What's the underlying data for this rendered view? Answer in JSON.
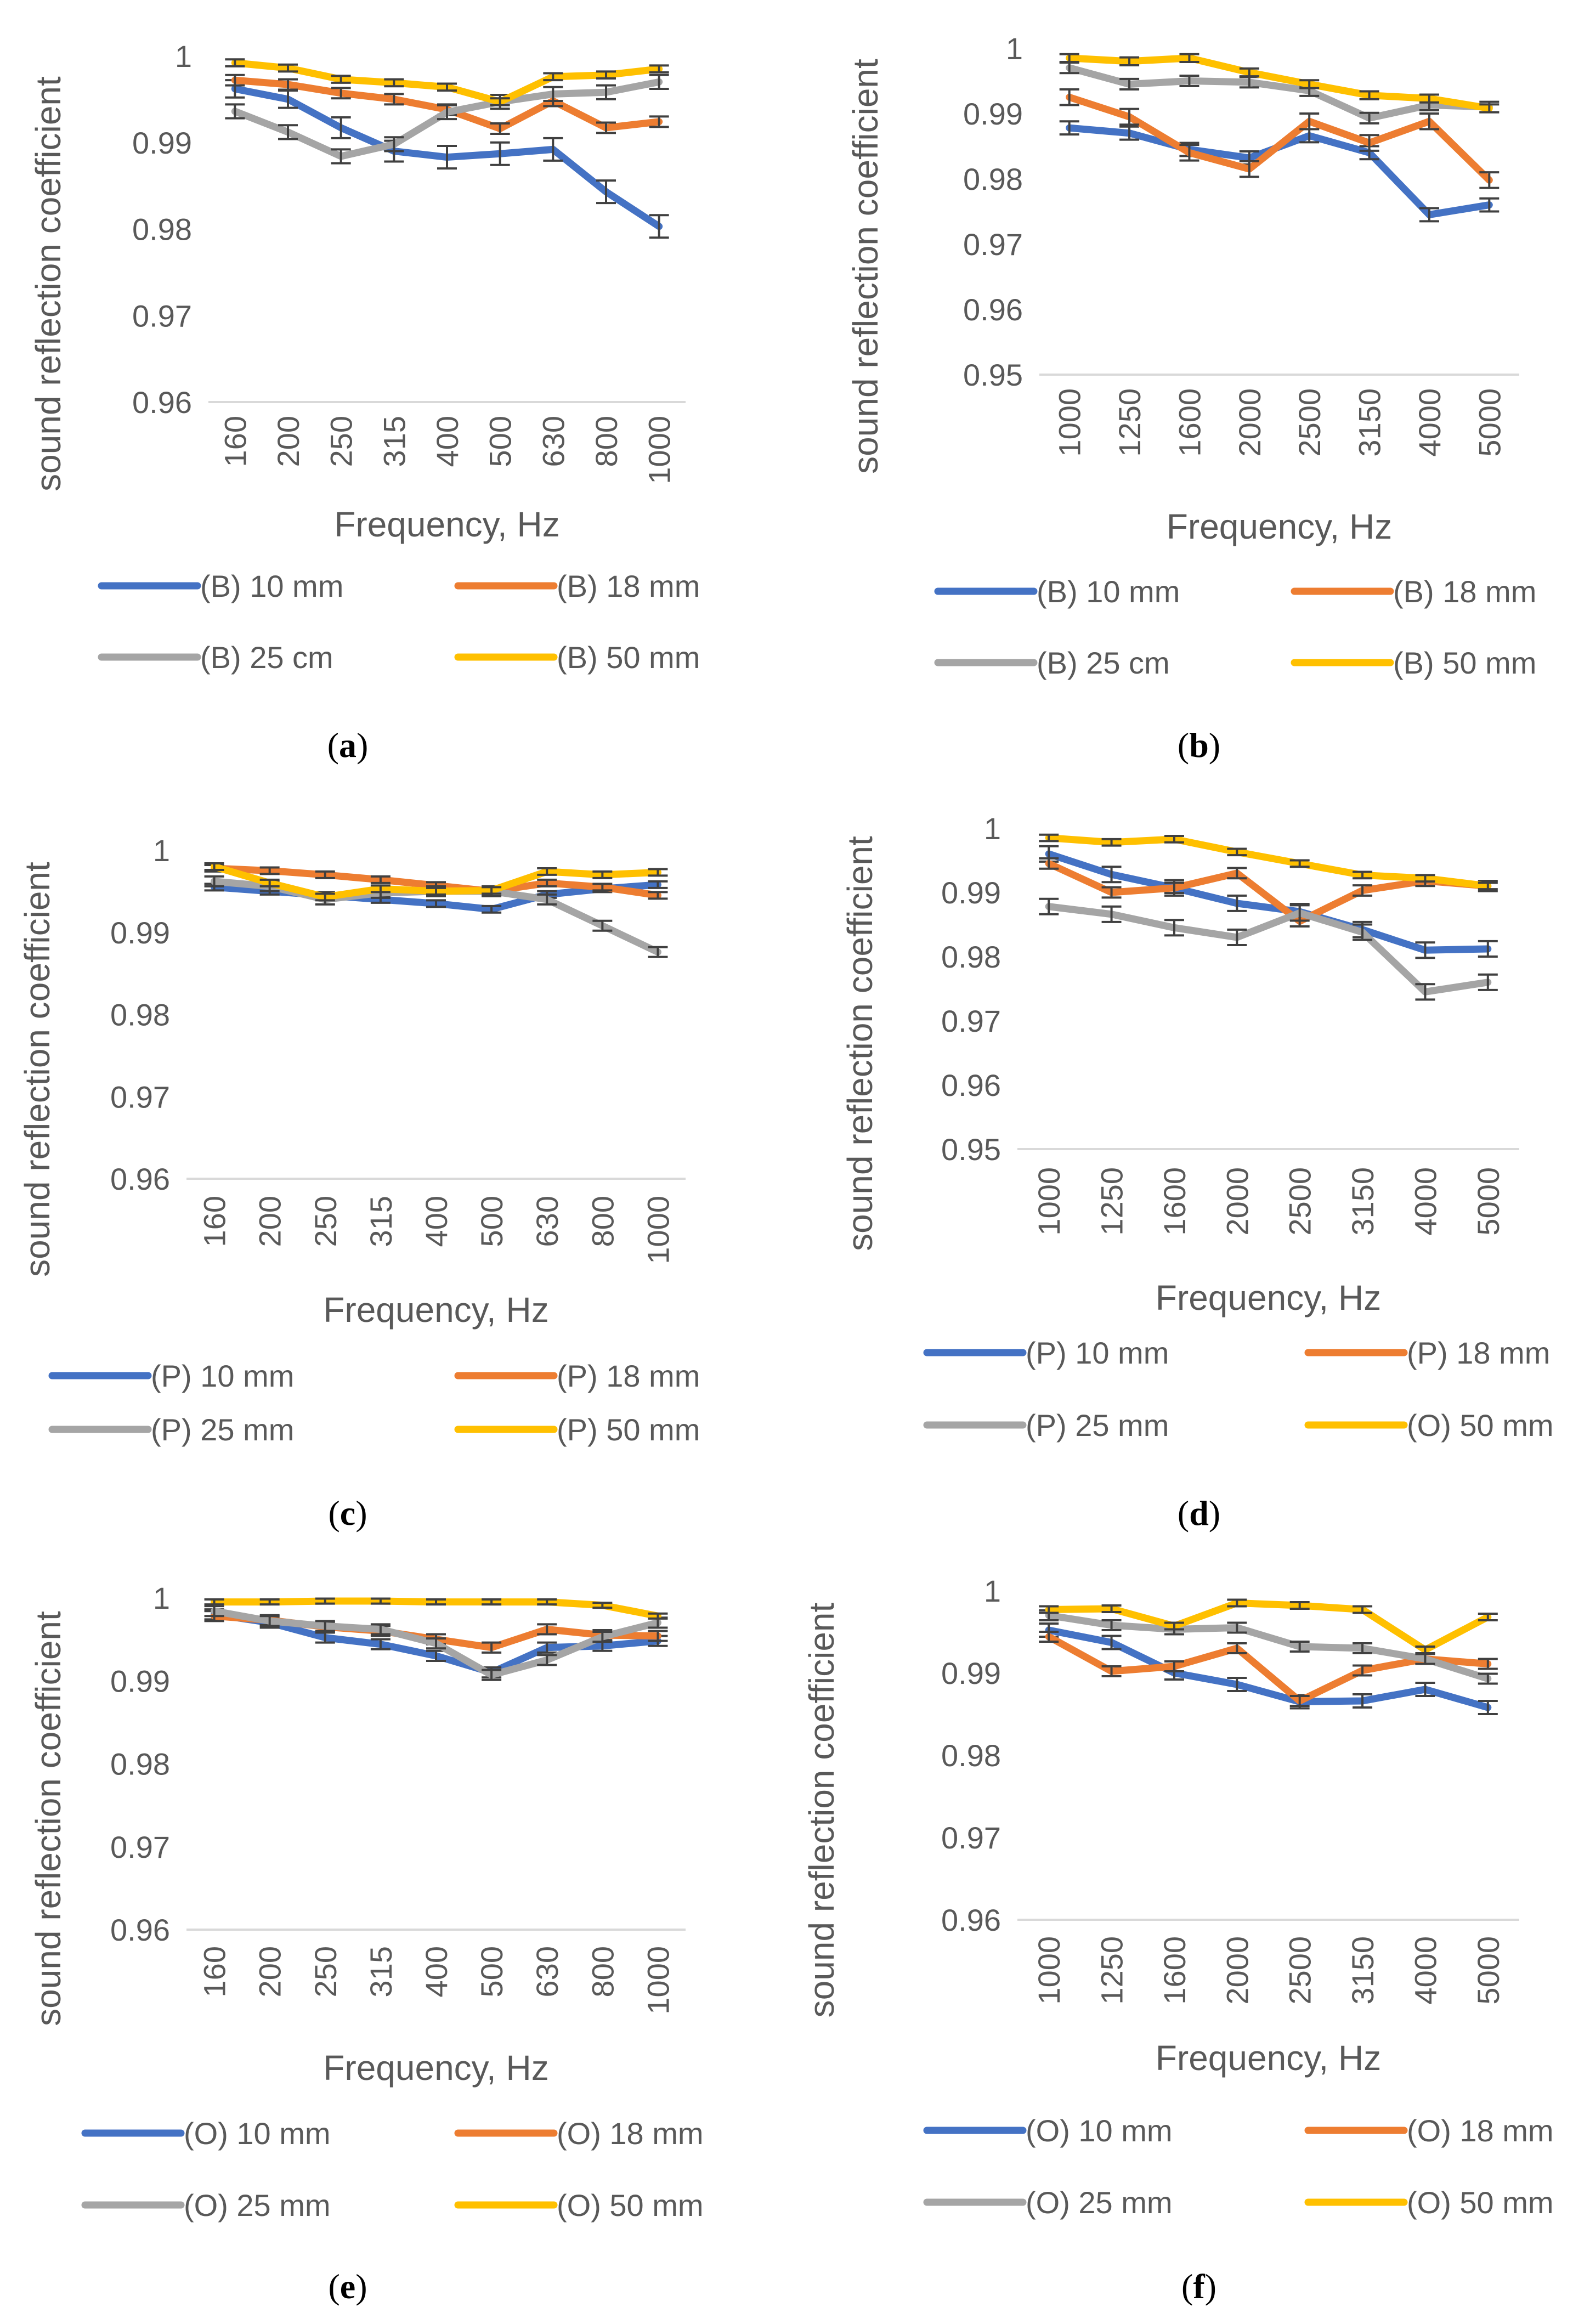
{
  "figure": {
    "y_axis_title": "sound reflection coefficient",
    "x_axis_title": "Frequency, Hz"
  },
  "colors": {
    "series": [
      "#4472C4",
      "#ED7D31",
      "#A5A5A5",
      "#FFC000"
    ],
    "axis": "#D9D9D9",
    "text": "#595959",
    "error_bar": "#404040"
  },
  "chart_data": [
    {
      "panel": "a",
      "caption_letter": "a",
      "type": "line",
      "title": "",
      "xlabel": "Frequency, Hz",
      "ylabel": "sound reflection coefficient",
      "categories": [
        "160",
        "200",
        "250",
        "315",
        "400",
        "500",
        "630",
        "800",
        "1000"
      ],
      "ylim": [
        0.96,
        1.0
      ],
      "yticks": [
        "1",
        "0.99",
        "0.98",
        "0.97",
        "0.96"
      ],
      "grid": false,
      "legend_position": "bottom",
      "series": [
        {
          "name": "(B) 10 mm",
          "values": [
            0.9962,
            0.995,
            0.9917,
            0.989,
            0.9883,
            0.9887,
            0.9892,
            0.9843,
            0.9803
          ],
          "errors": [
            0.001,
            0.001,
            0.0012,
            0.0012,
            0.0013,
            0.0013,
            0.0013,
            0.0013,
            0.0013
          ]
        },
        {
          "name": "(B) 18 mm",
          "values": [
            0.9972,
            0.9967,
            0.9957,
            0.995,
            0.9938,
            0.9916,
            0.9948,
            0.9917,
            0.9924
          ],
          "errors": [
            0.0006,
            0.0006,
            0.0006,
            0.0006,
            0.0006,
            0.0006,
            0.0006,
            0.0006,
            0.0006
          ]
        },
        {
          "name": "(B) 25 cm",
          "values": [
            0.9936,
            0.9912,
            0.9884,
            0.9898,
            0.9935,
            0.9947,
            0.9956,
            0.9958,
            0.997
          ],
          "errors": [
            0.0008,
            0.0008,
            0.0008,
            0.0008,
            0.0008,
            0.0008,
            0.0008,
            0.0008,
            0.0008
          ]
        },
        {
          "name": "(B) 50 mm",
          "values": [
            0.9992,
            0.9986,
            0.9973,
            0.9969,
            0.9964,
            0.9947,
            0.9976,
            0.9978,
            0.9985
          ],
          "errors": [
            0.0004,
            0.0004,
            0.0004,
            0.0004,
            0.0004,
            0.0004,
            0.0004,
            0.0004,
            0.0004
          ]
        }
      ]
    },
    {
      "panel": "b",
      "caption_letter": "b",
      "type": "line",
      "title": "",
      "xlabel": "Frequency, Hz",
      "ylabel": "sound reflection coefficient",
      "categories": [
        "1000",
        "1250",
        "1600",
        "2000",
        "2500",
        "3150",
        "4000",
        "5000"
      ],
      "ylim": [
        0.95,
        1.0
      ],
      "yticks": [
        "1",
        "0.99",
        "0.98",
        "0.97",
        "0.96",
        "0.95"
      ],
      "grid": false,
      "legend_position": "bottom",
      "series": [
        {
          "name": "(B) 10 mm",
          "values": [
            0.9878,
            0.987,
            0.9845,
            0.9832,
            0.9866,
            0.984,
            0.9745,
            0.976
          ],
          "errors": [
            0.001,
            0.001,
            0.001,
            0.001,
            0.001,
            0.001,
            0.001,
            0.001
          ]
        },
        {
          "name": "(B) 18 mm",
          "values": [
            0.9925,
            0.9895,
            0.984,
            0.9815,
            0.9888,
            0.9855,
            0.9888,
            0.9798
          ],
          "errors": [
            0.0012,
            0.0012,
            0.0012,
            0.0012,
            0.0012,
            0.0012,
            0.0012,
            0.0012
          ]
        },
        {
          "name": "(B) 25 cm",
          "values": [
            0.997,
            0.9945,
            0.995,
            0.9948,
            0.9935,
            0.9893,
            0.9913,
            0.991
          ],
          "errors": [
            0.0008,
            0.0008,
            0.0008,
            0.0008,
            0.0008,
            0.0008,
            0.0008,
            0.0008
          ]
        },
        {
          "name": "(B) 50 mm",
          "values": [
            0.9985,
            0.998,
            0.9985,
            0.9963,
            0.9945,
            0.9928,
            0.9923,
            0.9908
          ],
          "errors": [
            0.0006,
            0.0006,
            0.0006,
            0.0006,
            0.0006,
            0.0006,
            0.0006,
            0.0006
          ]
        }
      ]
    },
    {
      "panel": "c",
      "caption_letter": "c",
      "type": "line",
      "title": "",
      "xlabel": "Frequency, Hz",
      "ylabel": "sound reflection coefficient",
      "categories": [
        "160",
        "200",
        "250",
        "315",
        "400",
        "500",
        "630",
        "800",
        "1000"
      ],
      "ylim": [
        0.96,
        1.0
      ],
      "yticks": [
        "1",
        "0.99",
        "0.98",
        "0.97",
        "0.96"
      ],
      "grid": false,
      "legend_position": "bottom",
      "series": [
        {
          "name": "(P) 10 mm",
          "values": [
            0.9955,
            0.995,
            0.9945,
            0.994,
            0.9935,
            0.9928,
            0.9946,
            0.9953,
            0.9958
          ],
          "errors": [
            0.0004,
            0.0004,
            0.0004,
            0.0004,
            0.0004,
            0.0004,
            0.0004,
            0.0004,
            0.0004
          ]
        },
        {
          "name": "(P) 18 mm",
          "values": [
            0.9978,
            0.9975,
            0.997,
            0.9964,
            0.9957,
            0.995,
            0.996,
            0.9955,
            0.9945
          ],
          "errors": [
            0.0004,
            0.0004,
            0.0004,
            0.0004,
            0.0004,
            0.0004,
            0.0004,
            0.0004,
            0.0004
          ]
        },
        {
          "name": "(P) 25 mm",
          "values": [
            0.9962,
            0.9956,
            0.994,
            0.9948,
            0.995,
            0.995,
            0.994,
            0.9908,
            0.9876
          ],
          "errors": [
            0.0006,
            0.0006,
            0.0006,
            0.0006,
            0.0006,
            0.0006,
            0.0006,
            0.0006,
            0.0006
          ]
        },
        {
          "name": "(P) 50 mm",
          "values": [
            0.998,
            0.996,
            0.9943,
            0.9953,
            0.995,
            0.9951,
            0.9974,
            0.997,
            0.9973
          ],
          "errors": [
            0.0004,
            0.0004,
            0.0004,
            0.0004,
            0.0004,
            0.0004,
            0.0004,
            0.0004,
            0.0004
          ]
        }
      ]
    },
    {
      "panel": "d",
      "caption_letter": "d",
      "type": "line",
      "title": "",
      "xlabel": "Frequency, Hz",
      "ylabel": "sound reflection coefficient",
      "categories": [
        "1000",
        "1250",
        "1600",
        "2000",
        "2500",
        "3150",
        "4000",
        "5000"
      ],
      "ylim": [
        0.95,
        1.0
      ],
      "yticks": [
        "1",
        "0.99",
        "0.98",
        "0.97",
        "0.96",
        "0.95"
      ],
      "grid": false,
      "legend_position": "bottom",
      "series": [
        {
          "name": "(P) 10 mm",
          "values": [
            0.996,
            0.9928,
            0.9907,
            0.9883,
            0.987,
            0.9842,
            0.981,
            0.9812
          ],
          "errors": [
            0.0012,
            0.0012,
            0.0012,
            0.0012,
            0.0012,
            0.0012,
            0.0012,
            0.0012
          ]
        },
        {
          "name": "(P) 18 mm",
          "values": [
            0.9945,
            0.99,
            0.9907,
            0.993,
            0.9855,
            0.9903,
            0.9918,
            0.991
          ],
          "errors": [
            0.0008,
            0.0008,
            0.0008,
            0.0008,
            0.0008,
            0.0008,
            0.0008,
            0.0008
          ]
        },
        {
          "name": "(P) 25 mm",
          "values": [
            0.9878,
            0.9866,
            0.9845,
            0.983,
            0.9868,
            0.9838,
            0.9745,
            0.976
          ],
          "errors": [
            0.0012,
            0.0012,
            0.0012,
            0.0012,
            0.0012,
            0.0012,
            0.0012,
            0.0012
          ]
        },
        {
          "name": "(O) 50 mm",
          "values": [
            0.9985,
            0.9978,
            0.9983,
            0.9963,
            0.9945,
            0.9927,
            0.9922,
            0.991
          ],
          "errors": [
            0.0005,
            0.0005,
            0.0005,
            0.0005,
            0.0005,
            0.0005,
            0.0005,
            0.0005
          ]
        }
      ]
    },
    {
      "panel": "e",
      "caption_letter": "e",
      "type": "line",
      "title": "",
      "xlabel": "Frequency, Hz",
      "ylabel": "sound reflection coefficient",
      "categories": [
        "160",
        "200",
        "250",
        "315",
        "400",
        "500",
        "630",
        "800",
        "1000"
      ],
      "ylim": [
        0.96,
        1.0
      ],
      "yticks": [
        "1",
        "0.99",
        "0.98",
        "0.97",
        "0.96"
      ],
      "grid": false,
      "legend_position": "bottom",
      "series": [
        {
          "name": "(O) 10 mm",
          "values": [
            0.998,
            0.997,
            0.9952,
            0.9944,
            0.993,
            0.991,
            0.994,
            0.9942,
            0.9948
          ],
          "errors": [
            0.0006,
            0.0006,
            0.0006,
            0.0006,
            0.0006,
            0.0006,
            0.0006,
            0.0006,
            0.0006
          ]
        },
        {
          "name": "(O) 18 mm",
          "values": [
            0.9978,
            0.9973,
            0.9965,
            0.996,
            0.995,
            0.994,
            0.9962,
            0.9955,
            0.9954
          ],
          "errors": [
            0.0006,
            0.0006,
            0.0006,
            0.0006,
            0.0006,
            0.0006,
            0.0006,
            0.0006,
            0.0006
          ]
        },
        {
          "name": "(O) 25 mm",
          "values": [
            0.9984,
            0.9972,
            0.9966,
            0.9962,
            0.9945,
            0.9907,
            0.9925,
            0.9953,
            0.997
          ],
          "errors": [
            0.0006,
            0.0006,
            0.0006,
            0.0006,
            0.0006,
            0.0006,
            0.0006,
            0.0006,
            0.0006
          ]
        },
        {
          "name": "(O) 50 mm",
          "values": [
            0.9995,
            0.9995,
            0.9996,
            0.9996,
            0.9995,
            0.9995,
            0.9995,
            0.9991,
            0.9978
          ],
          "errors": [
            0.0003,
            0.0003,
            0.0003,
            0.0003,
            0.0003,
            0.0003,
            0.0003,
            0.0003,
            0.0003
          ]
        }
      ]
    },
    {
      "panel": "f",
      "caption_letter": "f",
      "type": "line",
      "title": "",
      "xlabel": "Frequency, Hz",
      "ylabel": "sound reflection coefficient",
      "categories": [
        "1000",
        "1250",
        "1600",
        "2000",
        "2500",
        "3150",
        "4000",
        "5000"
      ],
      "ylim": [
        0.96,
        1.0
      ],
      "yticks": [
        "1",
        "0.99",
        "0.98",
        "0.97",
        "0.96"
      ],
      "grid": false,
      "legend_position": "bottom",
      "series": [
        {
          "name": "(O) 10 mm",
          "values": [
            0.9952,
            0.9937,
            0.99,
            0.9886,
            0.9865,
            0.9866,
            0.988,
            0.9858
          ],
          "errors": [
            0.0008,
            0.0008,
            0.0008,
            0.0008,
            0.0008,
            0.0008,
            0.0008,
            0.0008
          ]
        },
        {
          "name": "(O) 18 mm",
          "values": [
            0.9944,
            0.9902,
            0.9908,
            0.993,
            0.9866,
            0.9903,
            0.9917,
            0.9911
          ],
          "errors": [
            0.0006,
            0.0006,
            0.0006,
            0.0006,
            0.0006,
            0.0006,
            0.0006,
            0.0006
          ]
        },
        {
          "name": "(O) 25 mm",
          "values": [
            0.997,
            0.9958,
            0.9953,
            0.9955,
            0.9932,
            0.993,
            0.9917,
            0.9893
          ],
          "errors": [
            0.0006,
            0.0006,
            0.0006,
            0.0006,
            0.0006,
            0.0006,
            0.0006,
            0.0006
          ]
        },
        {
          "name": "(O) 50 mm",
          "values": [
            0.9977,
            0.9978,
            0.9957,
            0.9985,
            0.9982,
            0.9977,
            0.9928,
            0.9968
          ],
          "errors": [
            0.0004,
            0.0004,
            0.0004,
            0.0004,
            0.0004,
            0.0004,
            0.0004,
            0.0004
          ]
        }
      ]
    }
  ]
}
